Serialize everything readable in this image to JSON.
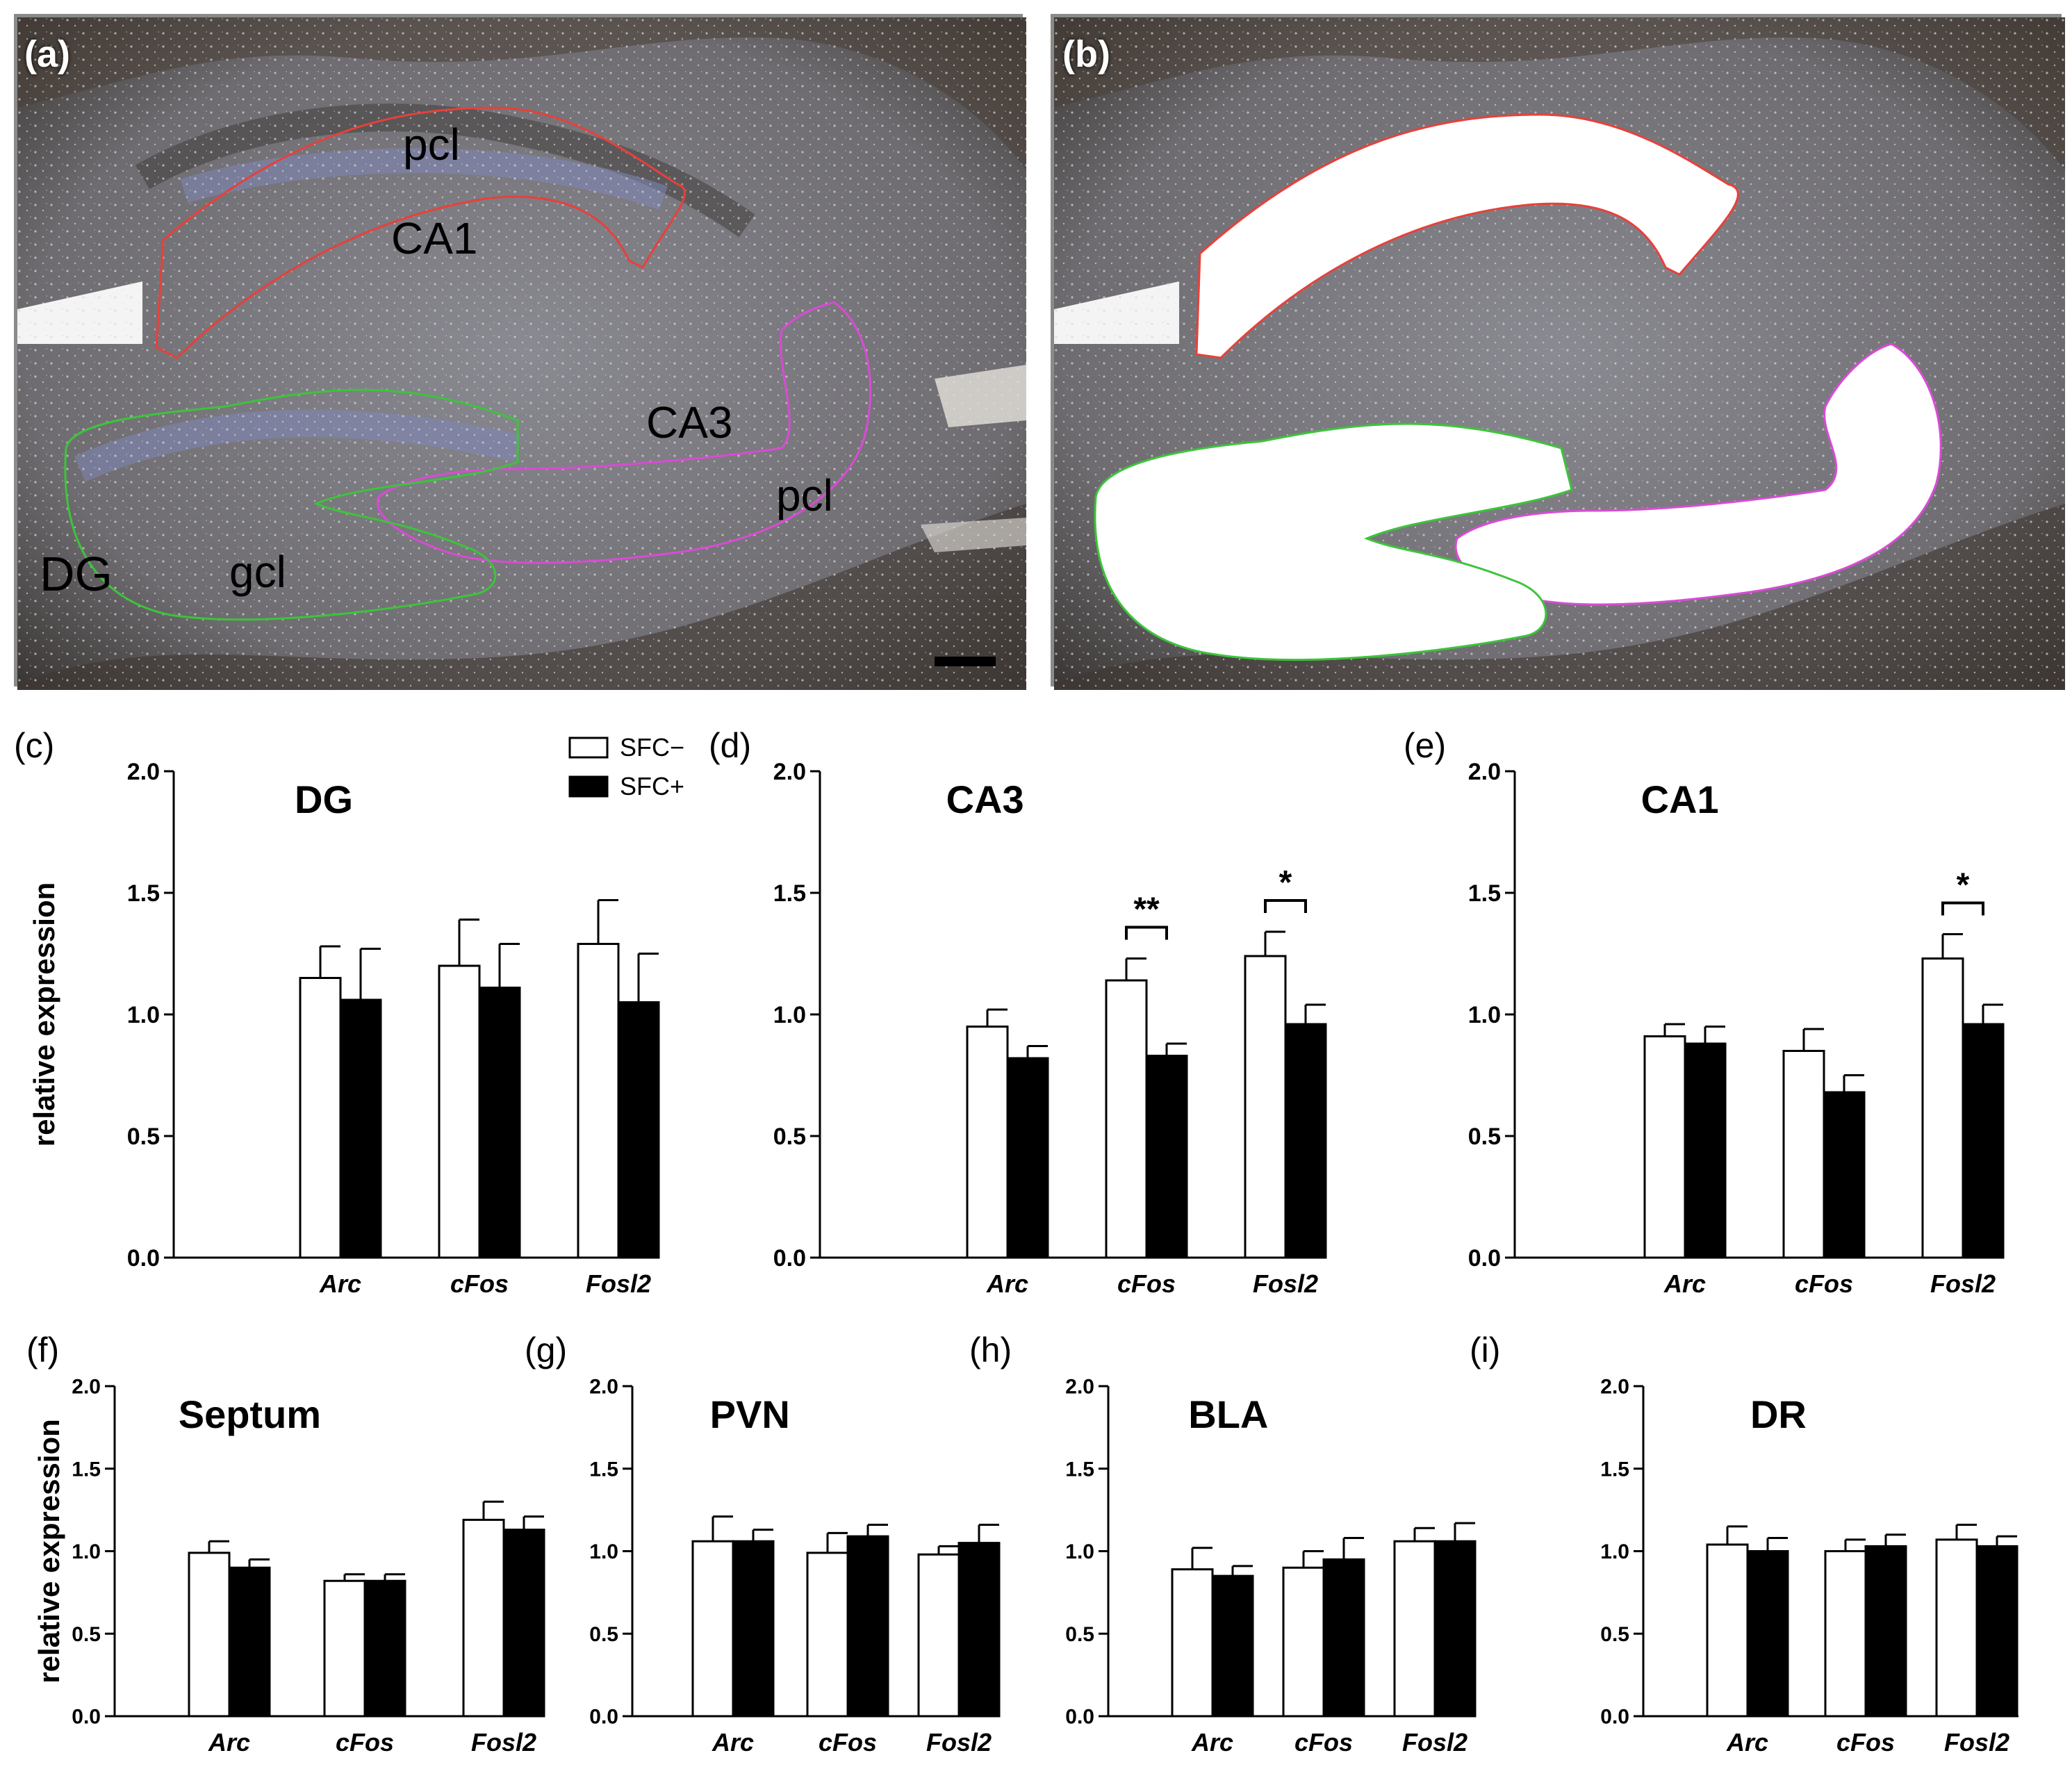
{
  "micrographs": [
    {
      "letter": "(a)",
      "labels": {
        "pcl_top": "pcl",
        "ca1": "CA1",
        "ca3": "CA3",
        "pcl_right": "pcl",
        "dg": "DG",
        "gcl": "gcl"
      }
    },
    {
      "letter": "(b)"
    }
  ],
  "colors": {
    "sfc_minus": "#ffffff",
    "sfc_plus": "#000000",
    "ca1_outline": "#e8403a",
    "ca3_outline": "#d94bd4",
    "dg_outline": "#3cc43a"
  },
  "legend": {
    "sfc_minus": "SFC−",
    "sfc_plus": "SFC+"
  },
  "ylabel": "relative expression",
  "chart_data": [
    {
      "letter": "(c)",
      "type": "bar",
      "title": "DG",
      "categories": [
        "Arc",
        "cFos",
        "Fosl2"
      ],
      "ylabel": "relative expression",
      "ylim": [
        0,
        2.0
      ],
      "yticks": [
        "0.0",
        "0.5",
        "1.0",
        "1.5",
        "2.0"
      ],
      "series": [
        {
          "name": "SFC−",
          "values": [
            1.15,
            1.2,
            1.29
          ],
          "errors": [
            0.13,
            0.19,
            0.18
          ]
        },
        {
          "name": "SFC+",
          "values": [
            1.06,
            1.11,
            1.05
          ],
          "errors": [
            0.21,
            0.18,
            0.2
          ]
        }
      ],
      "significance": []
    },
    {
      "letter": "(d)",
      "type": "bar",
      "title": "CA3",
      "categories": [
        "Arc",
        "cFos",
        "Fosl2"
      ],
      "ylim": [
        0,
        2.0
      ],
      "yticks": [
        "0.0",
        "0.5",
        "1.0",
        "1.5",
        "2.0"
      ],
      "series": [
        {
          "name": "SFC−",
          "values": [
            0.95,
            1.14,
            1.24
          ],
          "errors": [
            0.07,
            0.09,
            0.1
          ]
        },
        {
          "name": "SFC+",
          "values": [
            0.82,
            0.83,
            0.96
          ],
          "errors": [
            0.05,
            0.05,
            0.08
          ]
        }
      ],
      "significance": [
        {
          "category": 1,
          "label": "**"
        },
        {
          "category": 2,
          "label": "*"
        }
      ]
    },
    {
      "letter": "(e)",
      "type": "bar",
      "title": "CA1",
      "categories": [
        "Arc",
        "cFos",
        "Fosl2"
      ],
      "ylim": [
        0,
        2.0
      ],
      "yticks": [
        "0.0",
        "0.5",
        "1.0",
        "1.5",
        "2.0"
      ],
      "series": [
        {
          "name": "SFC−",
          "values": [
            0.91,
            0.85,
            1.23
          ],
          "errors": [
            0.05,
            0.09,
            0.1
          ]
        },
        {
          "name": "SFC+",
          "values": [
            0.88,
            0.68,
            0.96
          ],
          "errors": [
            0.07,
            0.07,
            0.08
          ]
        }
      ],
      "significance": [
        {
          "category": 2,
          "label": "*"
        }
      ]
    },
    {
      "letter": "(f)",
      "type": "bar",
      "title": "Septum",
      "categories": [
        "Arc",
        "cFos",
        "Fosl2"
      ],
      "ylabel": "relative expression",
      "ylim": [
        0,
        2.0
      ],
      "yticks": [
        "0.0",
        "0.5",
        "1.0",
        "1.5",
        "2.0"
      ],
      "series": [
        {
          "name": "SFC−",
          "values": [
            0.99,
            0.82,
            1.19
          ],
          "errors": [
            0.07,
            0.04,
            0.11
          ]
        },
        {
          "name": "SFC+",
          "values": [
            0.9,
            0.82,
            1.13
          ],
          "errors": [
            0.05,
            0.04,
            0.08
          ]
        }
      ],
      "significance": []
    },
    {
      "letter": "(g)",
      "type": "bar",
      "title": "PVN",
      "categories": [
        "Arc",
        "cFos",
        "Fosl2"
      ],
      "ylim": [
        0,
        2.0
      ],
      "yticks": [
        "0.0",
        "0.5",
        "1.0",
        "1.5",
        "2.0"
      ],
      "series": [
        {
          "name": "SFC−",
          "values": [
            1.06,
            0.99,
            0.98
          ],
          "errors": [
            0.15,
            0.12,
            0.05
          ]
        },
        {
          "name": "SFC+",
          "values": [
            1.06,
            1.09,
            1.05
          ],
          "errors": [
            0.07,
            0.07,
            0.11
          ]
        }
      ],
      "significance": []
    },
    {
      "letter": "(h)",
      "type": "bar",
      "title": "BLA",
      "categories": [
        "Arc",
        "cFos",
        "Fosl2"
      ],
      "ylim": [
        0,
        2.0
      ],
      "yticks": [
        "0.0",
        "0.5",
        "1.0",
        "1.5",
        "2.0"
      ],
      "series": [
        {
          "name": "SFC−",
          "values": [
            0.89,
            0.9,
            1.06
          ],
          "errors": [
            0.13,
            0.1,
            0.08
          ]
        },
        {
          "name": "SFC+",
          "values": [
            0.85,
            0.95,
            1.06
          ],
          "errors": [
            0.06,
            0.13,
            0.11
          ]
        }
      ],
      "significance": []
    },
    {
      "letter": "(i)",
      "type": "bar",
      "title": "DR",
      "categories": [
        "Arc",
        "cFos",
        "Fosl2"
      ],
      "ylim": [
        0,
        2.0
      ],
      "yticks": [
        "0.0",
        "0.5",
        "1.0",
        "1.5",
        "2.0"
      ],
      "series": [
        {
          "name": "SFC−",
          "values": [
            1.04,
            1.0,
            1.07
          ],
          "errors": [
            0.11,
            0.07,
            0.09
          ]
        },
        {
          "name": "SFC+",
          "values": [
            1.0,
            1.03,
            1.03
          ],
          "errors": [
            0.08,
            0.07,
            0.06
          ]
        }
      ],
      "significance": []
    }
  ]
}
